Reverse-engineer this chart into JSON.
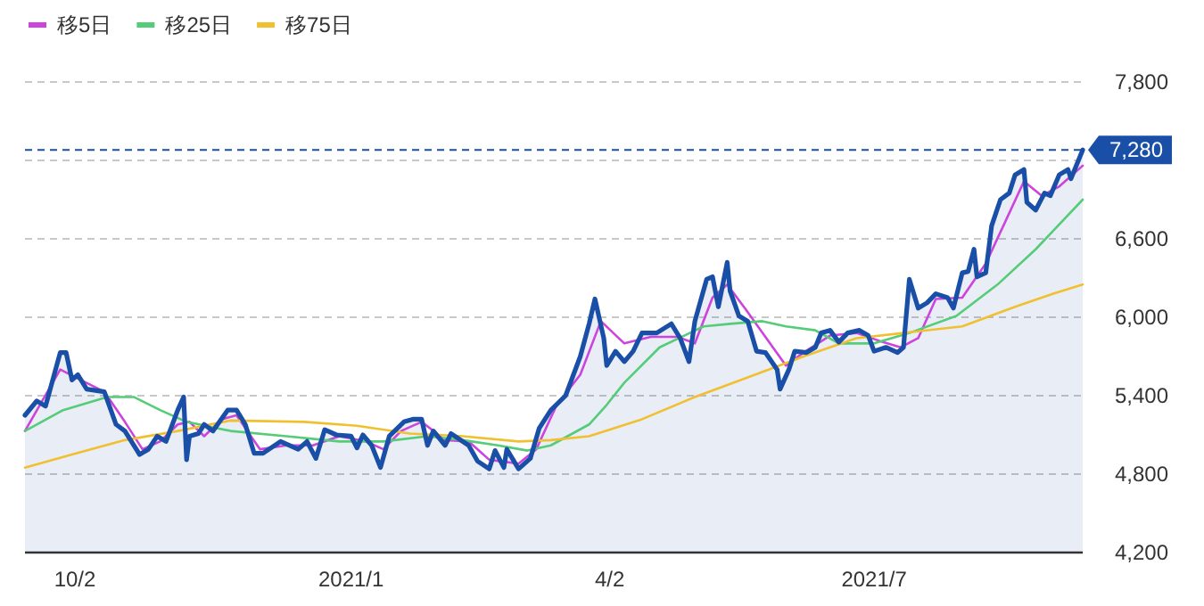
{
  "chart_data": {
    "type": "line",
    "xlim": [
      "2020-09-15",
      "2021-09-10"
    ],
    "xticks": [
      {
        "value": "2020-10-02",
        "label": "10/2"
      },
      {
        "value": "2021-01-04",
        "label": "2021/1"
      },
      {
        "value": "2021-04-02",
        "label": "4/2"
      },
      {
        "value": "2021-07-01",
        "label": "2021/7"
      }
    ],
    "ylim": [
      4200,
      7800
    ],
    "yticks": [
      {
        "value": 4200,
        "label": "4,200"
      },
      {
        "value": 4800,
        "label": "4,800"
      },
      {
        "value": 5400,
        "label": "5,400"
      },
      {
        "value": 6000,
        "label": "6,000"
      },
      {
        "value": 6600,
        "label": "6,600"
      },
      {
        "value": 7200,
        "label": null
      },
      {
        "value": 7800,
        "label": "7,800"
      }
    ],
    "grid": "y",
    "legend": "top left",
    "ref_lines": [
      {
        "axis": "y",
        "value": 7280,
        "label": "7,280",
        "color": "#1a4fa8",
        "line_style": "dashed"
      }
    ],
    "series": [
      {
        "name": "移5日",
        "color": "#cc44dd",
        "x": [
          "2020-09-15",
          "2020-09-27",
          "2020-10-04",
          "2020-10-12",
          "2020-10-19",
          "2020-10-25",
          "2020-10-31",
          "2020-11-06",
          "2020-11-10",
          "2020-11-15",
          "2020-11-21",
          "2020-11-26",
          "2020-12-04",
          "2020-12-13",
          "2020-12-22",
          "2020-12-31",
          "2021-01-09",
          "2021-01-15",
          "2021-01-21",
          "2021-01-28",
          "2021-02-05",
          "2021-02-13",
          "2021-02-20",
          "2021-03-02",
          "2021-03-08",
          "2021-03-15",
          "2021-03-23",
          "2021-03-30",
          "2021-04-07",
          "2021-04-16",
          "2021-04-25",
          "2021-05-01",
          "2021-05-07",
          "2021-05-12",
          "2021-05-18",
          "2021-05-25",
          "2021-06-01",
          "2021-06-07",
          "2021-06-16",
          "2021-06-25",
          "2021-07-04",
          "2021-07-10",
          "2021-07-16",
          "2021-07-22",
          "2021-07-31",
          "2021-08-08",
          "2021-08-14",
          "2021-08-21",
          "2021-08-27",
          "2021-09-02",
          "2021-09-10"
        ],
        "values": [
          5130,
          5600,
          5520,
          5430,
          5200,
          4990,
          5050,
          5180,
          5200,
          5090,
          5220,
          5250,
          4990,
          5020,
          5020,
          5090,
          5050,
          4990,
          5130,
          5200,
          5060,
          5050,
          4910,
          4880,
          4990,
          5330,
          5560,
          5970,
          5800,
          5850,
          5850,
          5800,
          6150,
          6250,
          6070,
          5850,
          5630,
          5730,
          5860,
          5880,
          5810,
          5770,
          5840,
          6140,
          6150,
          6410,
          6700,
          7040,
          6930,
          7000,
          7160
        ]
      },
      {
        "name": "移25日",
        "color": "#55cc77",
        "x": [
          "2020-09-15",
          "2020-09-28",
          "2020-10-13",
          "2020-10-22",
          "2020-10-31",
          "2020-11-09",
          "2020-11-24",
          "2020-12-13",
          "2020-12-31",
          "2021-01-15",
          "2021-01-30",
          "2021-02-11",
          "2021-02-23",
          "2021-03-05",
          "2021-03-13",
          "2021-03-26",
          "2021-04-01",
          "2021-04-07",
          "2021-04-19",
          "2021-05-04",
          "2021-05-13",
          "2021-05-24",
          "2021-06-01",
          "2021-06-11",
          "2021-06-19",
          "2021-07-01",
          "2021-07-13",
          "2021-07-29",
          "2021-08-12",
          "2021-08-25",
          "2021-09-10"
        ],
        "values": [
          5130,
          5290,
          5390,
          5390,
          5290,
          5200,
          5130,
          5090,
          5050,
          5050,
          5090,
          5060,
          5020,
          4980,
          5020,
          5180,
          5330,
          5500,
          5770,
          5930,
          5950,
          5970,
          5930,
          5900,
          5800,
          5800,
          5880,
          6010,
          6250,
          6520,
          6900
        ]
      },
      {
        "name": "移75日",
        "color": "#f0c030",
        "x": [
          "2020-09-15",
          "2020-10-01",
          "2020-10-19",
          "2020-11-06",
          "2020-11-24",
          "2020-12-19",
          "2021-01-06",
          "2021-01-24",
          "2021-02-11",
          "2021-03-02",
          "2021-03-13",
          "2021-03-26",
          "2021-04-13",
          "2021-05-01",
          "2021-05-19",
          "2021-06-07",
          "2021-06-25",
          "2021-07-11",
          "2021-07-31",
          "2021-08-18",
          "2021-08-31",
          "2021-09-10"
        ],
        "values": [
          4850,
          4950,
          5060,
          5130,
          5210,
          5200,
          5170,
          5110,
          5090,
          5050,
          5060,
          5090,
          5220,
          5390,
          5540,
          5700,
          5840,
          5880,
          5930,
          6080,
          6180,
          6250
        ]
      },
      {
        "type": "area",
        "color": "#1a4fa8",
        "x": [
          "2020-09-15",
          "2020-09-19",
          "2020-09-22",
          "2020-09-27",
          "2020-09-29",
          "2020-10-01",
          "2020-10-03",
          "2020-10-06",
          "2020-10-12",
          "2020-10-16",
          "2020-10-19",
          "2020-10-24",
          "2020-10-27",
          "2020-10-30",
          "2020-11-02",
          "2020-11-06",
          "2020-11-08",
          "2020-11-09",
          "2020-11-10",
          "2020-11-13",
          "2020-11-15",
          "2020-11-18",
          "2020-11-23",
          "2020-11-26",
          "2020-11-29",
          "2020-12-02",
          "2020-12-05",
          "2020-12-11",
          "2020-12-17",
          "2020-12-20",
          "2020-12-23",
          "2020-12-26",
          "2020-12-30",
          "2021-01-04",
          "2021-01-06",
          "2021-01-08",
          "2021-01-11",
          "2021-01-14",
          "2021-01-17",
          "2021-01-22",
          "2021-01-25",
          "2021-01-28",
          "2021-01-30",
          "2021-02-01",
          "2021-02-05",
          "2021-02-07",
          "2021-02-13",
          "2021-02-16",
          "2021-02-20",
          "2021-02-22",
          "2021-02-25",
          "2021-02-26",
          "2021-03-02",
          "2021-03-06",
          "2021-03-09",
          "2021-03-13",
          "2021-03-18",
          "2021-03-23",
          "2021-03-26",
          "2021-03-28",
          "2021-03-31",
          "2021-04-01",
          "2021-04-04",
          "2021-04-07",
          "2021-04-10",
          "2021-04-13",
          "2021-04-18",
          "2021-04-23",
          "2021-04-26",
          "2021-04-29",
          "2021-05-01",
          "2021-05-05",
          "2021-05-07",
          "2021-05-09",
          "2021-05-12",
          "2021-05-13",
          "2021-05-16",
          "2021-05-19",
          "2021-05-22",
          "2021-05-25",
          "2021-05-29",
          "2021-05-30",
          "2021-06-02",
          "2021-06-04",
          "2021-06-08",
          "2021-06-11",
          "2021-06-13",
          "2021-06-16",
          "2021-06-19",
          "2021-06-22",
          "2021-06-26",
          "2021-06-29",
          "2021-07-01",
          "2021-07-05",
          "2021-07-09",
          "2021-07-11",
          "2021-07-13",
          "2021-07-16",
          "2021-07-19",
          "2021-07-22",
          "2021-07-26",
          "2021-07-28",
          "2021-07-31",
          "2021-08-02",
          "2021-08-04",
          "2021-08-05",
          "2021-08-08",
          "2021-08-10",
          "2021-08-13",
          "2021-08-16",
          "2021-08-18",
          "2021-08-21",
          "2021-08-22",
          "2021-08-25",
          "2021-08-28",
          "2021-08-30",
          "2021-09-02",
          "2021-09-05",
          "2021-09-06",
          "2021-09-10"
        ],
        "values": [
          5250,
          5360,
          5320,
          5730,
          5730,
          5520,
          5560,
          5450,
          5430,
          5180,
          5130,
          4950,
          4990,
          5090,
          5050,
          5290,
          5390,
          4910,
          5090,
          5110,
          5180,
          5130,
          5290,
          5290,
          5180,
          4960,
          4960,
          5050,
          4990,
          5050,
          4920,
          5140,
          5100,
          5090,
          5000,
          5100,
          5020,
          4850,
          5090,
          5200,
          5220,
          5220,
          5020,
          5130,
          5020,
          5110,
          5020,
          4900,
          4840,
          4980,
          4850,
          4990,
          4840,
          4920,
          5150,
          5290,
          5400,
          5700,
          5950,
          6140,
          5840,
          5630,
          5740,
          5660,
          5740,
          5880,
          5880,
          5950,
          5840,
          5660,
          5970,
          6290,
          6310,
          6080,
          6420,
          6200,
          6010,
          5970,
          5740,
          5730,
          5600,
          5450,
          5600,
          5740,
          5730,
          5770,
          5880,
          5900,
          5810,
          5880,
          5900,
          5860,
          5740,
          5770,
          5730,
          5770,
          6290,
          6070,
          6110,
          6180,
          6150,
          6070,
          6340,
          6350,
          6520,
          6310,
          6340,
          6700,
          6900,
          6950,
          7090,
          7130,
          6880,
          6820,
          6950,
          6930,
          7090,
          7130,
          7060,
          7280
        ]
      }
    ]
  }
}
